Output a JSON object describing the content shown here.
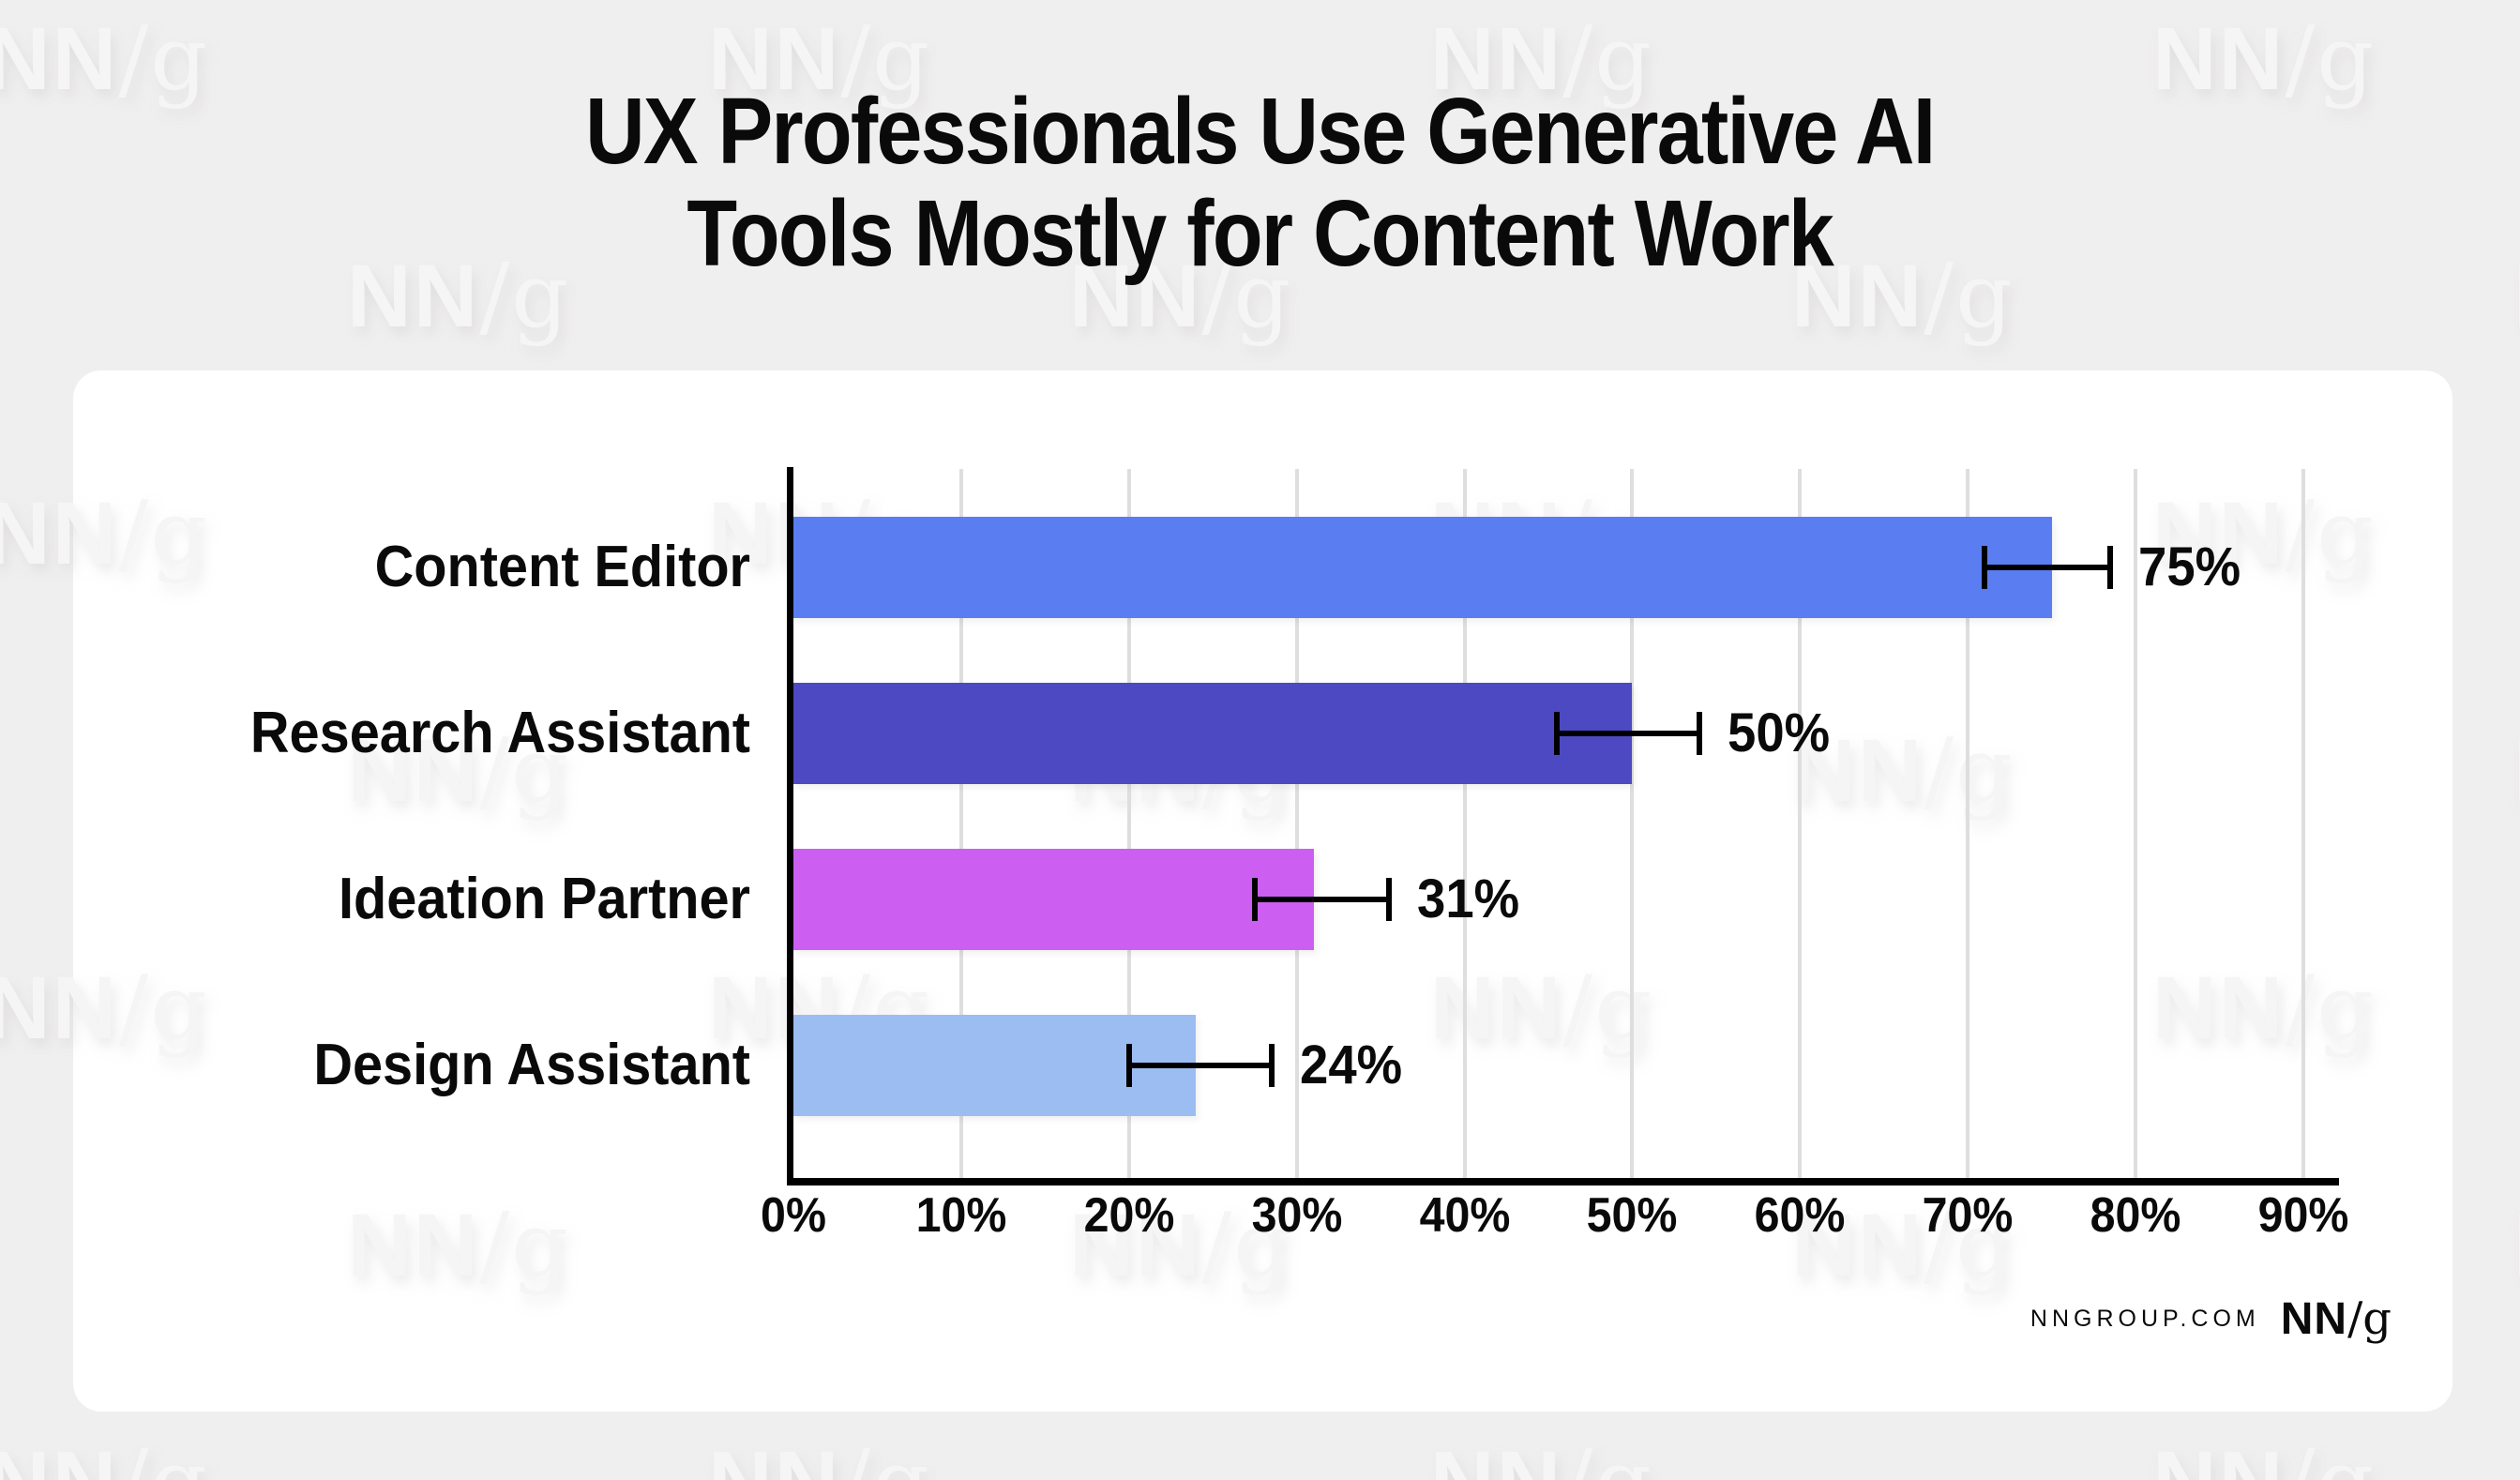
{
  "page": {
    "background_color": "#F0EFEF",
    "card_color": "#FFFFFF"
  },
  "title": {
    "line1": "UX Professionals Use Generative AI",
    "line2": "Tools Mostly for Content Work"
  },
  "watermark": {
    "nn": "NN",
    "slash_g": "/g",
    "color": "#F6F5F5"
  },
  "footer": {
    "site": "NNGROUP.COM",
    "logo_nn": "NN",
    "logo_slash_g": "/g"
  },
  "chart_data": {
    "type": "bar",
    "orientation": "horizontal",
    "title": "UX Professionals Use Generative AI Tools Mostly for Content Work",
    "categories": [
      "Content Editor",
      "Research Assistant",
      "Ideation Partner",
      "Design Assistant"
    ],
    "values": [
      75,
      50,
      31,
      24
    ],
    "value_labels": [
      "75%",
      "50%",
      "31%",
      "24%"
    ],
    "error_bars": {
      "low": [
        71,
        45.5,
        27.5,
        20
      ],
      "high": [
        78.5,
        54,
        35.5,
        28.5
      ]
    },
    "bar_colors": [
      "#5A7DF2",
      "#4D49C2",
      "#CC5FF2",
      "#9CBDF2"
    ],
    "x_ticks": [
      "0%",
      "10%",
      "20%",
      "30%",
      "40%",
      "50%",
      "60%",
      "70%",
      "80%",
      "90%"
    ],
    "x_min": 0,
    "x_max": 90,
    "grid": true,
    "gridline_color": "#DFDEDE",
    "axis_color": "#000000",
    "plot_background": "#FFFFFF",
    "legend": "none"
  }
}
